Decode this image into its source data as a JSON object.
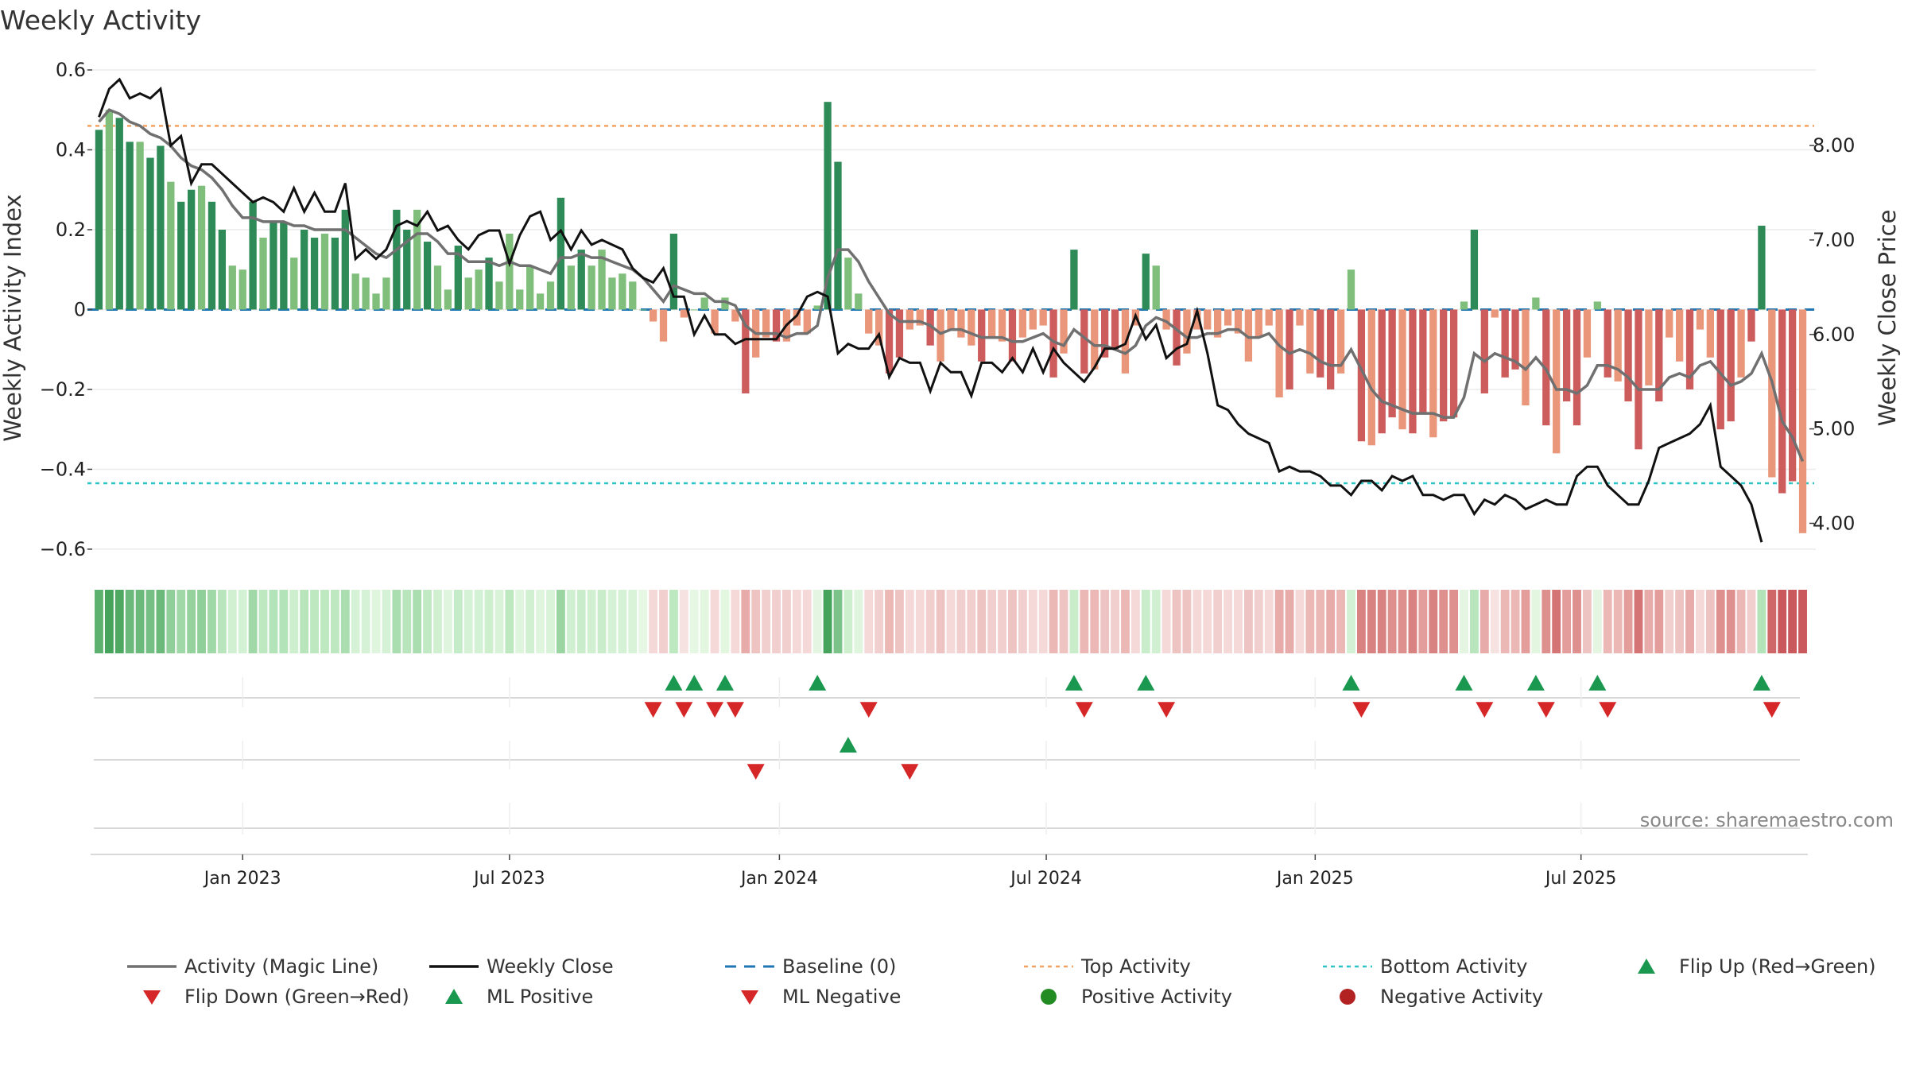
{
  "title": "Weekly Activity",
  "source": "source: sharemaestro.com",
  "colors": {
    "pos_dark": "#2e8b57",
    "pos_light": "#7fbf7b",
    "neg_dark": "#cd5c5c",
    "neg_light": "#e9967a",
    "close": "#111111",
    "magic": "#707070",
    "baseline": "#1f77b4",
    "top": "#f4a261",
    "bottom": "#2ec4c4",
    "tri_up": "#1a9850",
    "tri_down": "#d62728",
    "pos_dot": "#228b22",
    "neg_dot": "#b22222"
  },
  "legend": [
    {
      "label": "Activity (Magic Line)",
      "symbol": "line",
      "color": "#707070"
    },
    {
      "label": "Weekly Close",
      "symbol": "line",
      "color": "#111111"
    },
    {
      "label": "Baseline (0)",
      "symbol": "dash",
      "color": "#1f77b4"
    },
    {
      "label": "Top Activity",
      "symbol": "dot-line",
      "color": "#f4a261"
    },
    {
      "label": "Bottom Activity",
      "symbol": "dot-line",
      "color": "#2ec4c4"
    },
    {
      "label": "Flip Up (Red→Green)",
      "symbol": "tri-up",
      "color": "#1a9850"
    },
    {
      "label": "Flip Down (Green→Red)",
      "symbol": "tri-down",
      "color": "#d62728"
    },
    {
      "label": "ML Positive",
      "symbol": "tri-up",
      "color": "#1a9850"
    },
    {
      "label": "ML Negative",
      "symbol": "tri-down",
      "color": "#d62728"
    },
    {
      "label": "Positive Activity",
      "symbol": "circle",
      "color": "#228b22"
    },
    {
      "label": "Negative Activity",
      "symbol": "circle",
      "color": "#b22222"
    }
  ],
  "chart_data": {
    "type": "bar",
    "title": "Weekly Activity",
    "ylabel": "Weekly Activity Index",
    "y2label": "Weekly Close Price",
    "ylim": [
      -0.63,
      0.6
    ],
    "y2lim": [
      3.6,
      8.8
    ],
    "yticks": [
      {
        "v": 0.6,
        "label": "0.6"
      },
      {
        "v": 0.4,
        "label": "0.4"
      },
      {
        "v": 0.2,
        "label": "0.2"
      },
      {
        "v": 0,
        "label": "0"
      },
      {
        "v": -0.2,
        "label": "−0.2"
      },
      {
        "v": -0.4,
        "label": "−0.4"
      },
      {
        "v": -0.6,
        "label": "−0.6"
      }
    ],
    "y2ticks": [
      {
        "v": 8.0,
        "label": "8.00"
      },
      {
        "v": 7.0,
        "label": "7.00"
      },
      {
        "v": 6.0,
        "label": "6.00"
      },
      {
        "v": 5.0,
        "label": "5.00"
      },
      {
        "v": 4.0,
        "label": "4.00"
      }
    ],
    "x_start_week": -14,
    "xticks": [
      {
        "week": 0,
        "label": "Jan 2023"
      },
      {
        "week": 26,
        "label": "Jul 2023"
      },
      {
        "week": 52.3,
        "label": "Jan 2024"
      },
      {
        "week": 78.3,
        "label": "Jul 2024"
      },
      {
        "week": 104.5,
        "label": "Jan 2025"
      },
      {
        "week": 130.4,
        "label": "Jul 2025"
      }
    ],
    "top_activity": 0.46,
    "bottom_activity": -0.435,
    "baseline": 0,
    "activity": [
      0.45,
      0.5,
      0.48,
      0.42,
      0.42,
      0.38,
      0.41,
      0.32,
      0.27,
      0.3,
      0.31,
      0.27,
      0.2,
      0.11,
      0.1,
      0.27,
      0.18,
      0.22,
      0.22,
      0.13,
      0.2,
      0.18,
      0.19,
      0.18,
      0.25,
      0.09,
      0.08,
      0.04,
      0.08,
      0.25,
      0.2,
      0.25,
      0.17,
      0.11,
      0.05,
      0.16,
      0.08,
      0.1,
      0.13,
      0.07,
      0.19,
      0.05,
      0.11,
      0.04,
      0.07,
      0.28,
      0.11,
      0.15,
      0.11,
      0.15,
      0.08,
      0.09,
      0.07,
      0.0,
      -0.03,
      -0.08,
      0.19,
      -0.02,
      0.0,
      0.03,
      -0.06,
      0.03,
      -0.03,
      -0.21,
      -0.12,
      -0.07,
      -0.08,
      -0.08,
      -0.04,
      -0.06,
      0.01,
      0.52,
      0.37,
      0.13,
      0.04,
      -0.06,
      -0.09,
      -0.16,
      -0.12,
      -0.05,
      -0.04,
      -0.09,
      -0.13,
      -0.05,
      -0.07,
      -0.09,
      -0.13,
      -0.07,
      -0.08,
      -0.13,
      -0.07,
      -0.05,
      -0.04,
      -0.17,
      -0.11,
      0.15,
      -0.16,
      -0.15,
      -0.12,
      -0.1,
      -0.16,
      -0.04,
      0.14,
      0.11,
      -0.05,
      -0.14,
      -0.11,
      -0.05,
      -0.05,
      -0.07,
      -0.04,
      -0.06,
      -0.13,
      -0.07,
      -0.04,
      -0.22,
      -0.2,
      -0.04,
      -0.16,
      -0.17,
      -0.2,
      -0.16,
      0.1,
      -0.33,
      -0.34,
      -0.31,
      -0.27,
      -0.3,
      -0.31,
      -0.26,
      -0.32,
      -0.28,
      -0.27,
      0.02,
      0.2,
      -0.21,
      -0.02,
      -0.17,
      -0.15,
      -0.24,
      0.03,
      -0.29,
      -0.36,
      -0.23,
      -0.29,
      -0.12,
      0.02,
      -0.17,
      -0.18,
      -0.23,
      -0.35,
      -0.19,
      -0.23,
      -0.07,
      -0.13,
      -0.2,
      -0.05,
      -0.12,
      -0.3,
      -0.28,
      -0.17,
      -0.08,
      0.21,
      -0.42,
      -0.46,
      -0.43,
      -0.56
    ],
    "magic_line": [
      0.47,
      0.5,
      0.49,
      0.47,
      0.46,
      0.44,
      0.43,
      0.41,
      0.38,
      0.36,
      0.35,
      0.33,
      0.3,
      0.26,
      0.23,
      0.23,
      0.22,
      0.22,
      0.22,
      0.21,
      0.21,
      0.2,
      0.2,
      0.2,
      0.2,
      0.18,
      0.16,
      0.14,
      0.13,
      0.15,
      0.17,
      0.19,
      0.19,
      0.17,
      0.14,
      0.14,
      0.12,
      0.12,
      0.12,
      0.11,
      0.12,
      0.11,
      0.11,
      0.1,
      0.09,
      0.13,
      0.13,
      0.14,
      0.13,
      0.13,
      0.12,
      0.11,
      0.1,
      0.08,
      0.05,
      0.02,
      0.06,
      0.05,
      0.04,
      0.04,
      0.02,
      0.02,
      0.01,
      -0.04,
      -0.06,
      -0.06,
      -0.06,
      -0.07,
      -0.06,
      -0.06,
      -0.04,
      0.08,
      0.15,
      0.15,
      0.12,
      0.07,
      0.03,
      -0.01,
      -0.03,
      -0.03,
      -0.03,
      -0.04,
      -0.06,
      -0.05,
      -0.05,
      -0.06,
      -0.07,
      -0.07,
      -0.07,
      -0.08,
      -0.08,
      -0.07,
      -0.06,
      -0.08,
      -0.09,
      -0.05,
      -0.07,
      -0.09,
      -0.09,
      -0.1,
      -0.11,
      -0.09,
      -0.04,
      -0.02,
      -0.03,
      -0.05,
      -0.07,
      -0.07,
      -0.06,
      -0.06,
      -0.05,
      -0.05,
      -0.07,
      -0.07,
      -0.06,
      -0.09,
      -0.11,
      -0.1,
      -0.11,
      -0.13,
      -0.14,
      -0.14,
      -0.1,
      -0.15,
      -0.2,
      -0.23,
      -0.24,
      -0.25,
      -0.26,
      -0.26,
      -0.26,
      -0.27,
      -0.27,
      -0.22,
      -0.11,
      -0.13,
      -0.11,
      -0.12,
      -0.13,
      -0.15,
      -0.12,
      -0.15,
      -0.2,
      -0.2,
      -0.21,
      -0.19,
      -0.14,
      -0.14,
      -0.15,
      -0.17,
      -0.2,
      -0.2,
      -0.2,
      -0.17,
      -0.16,
      -0.17,
      -0.14,
      -0.13,
      -0.16,
      -0.19,
      -0.18,
      -0.16,
      -0.11,
      -0.18,
      -0.28,
      -0.32,
      -0.38
    ],
    "weekly_close": [
      8.3,
      8.6,
      8.7,
      8.5,
      8.55,
      8.5,
      8.6,
      8.0,
      8.1,
      7.6,
      7.8,
      7.8,
      7.7,
      7.6,
      7.5,
      7.4,
      7.45,
      7.4,
      7.3,
      7.55,
      7.3,
      7.5,
      7.3,
      7.3,
      7.6,
      6.8,
      6.9,
      6.8,
      6.9,
      7.15,
      7.2,
      7.15,
      7.3,
      7.1,
      7.15,
      7.0,
      6.9,
      7.05,
      7.1,
      7.1,
      6.75,
      7.05,
      7.25,
      7.3,
      7.0,
      7.1,
      6.9,
      7.1,
      6.95,
      7.0,
      6.95,
      6.9,
      6.7,
      6.6,
      6.55,
      6.7,
      6.4,
      6.4,
      6.0,
      6.2,
      6.0,
      6.0,
      5.9,
      5.95,
      5.95,
      5.95,
      5.95,
      6.1,
      6.2,
      6.4,
      6.45,
      6.4,
      5.8,
      5.9,
      5.85,
      5.85,
      6.0,
      5.55,
      5.75,
      5.7,
      5.7,
      5.4,
      5.7,
      5.6,
      5.6,
      5.35,
      5.7,
      5.7,
      5.6,
      5.75,
      5.6,
      5.85,
      5.6,
      5.85,
      5.7,
      5.6,
      5.5,
      5.65,
      5.85,
      5.85,
      5.9,
      6.2,
      5.95,
      6.1,
      5.75,
      5.85,
      5.9,
      6.25,
      5.8,
      5.25,
      5.2,
      5.05,
      4.95,
      4.9,
      4.85,
      4.55,
      4.6,
      4.55,
      4.55,
      4.5,
      4.4,
      4.4,
      4.3,
      4.45,
      4.45,
      4.35,
      4.5,
      4.45,
      4.5,
      4.3,
      4.3,
      4.25,
      4.3,
      4.3,
      4.1,
      4.25,
      4.2,
      4.3,
      4.25,
      4.15,
      4.2,
      4.25,
      4.2,
      4.2,
      4.5,
      4.6,
      4.6,
      4.4,
      4.3,
      4.2,
      4.2,
      4.45,
      4.8,
      4.85,
      4.9,
      4.95,
      5.05,
      5.25,
      4.6,
      4.5,
      4.4,
      4.2,
      3.8
    ]
  },
  "strip_colors": [
    "#45a35b",
    "#4ea862",
    "#55ac68",
    "#5cb16e",
    "#61b473",
    "#66b677",
    "#6bb97b",
    "#70bc7f",
    "#76bf84",
    "#7bc388",
    "#80c68d",
    "#85c991",
    "#8acc95",
    "#90cf9a",
    "#95d29e",
    "#9ad5a2",
    "#a0d8a7",
    "#a5dbac",
    "#aadeb0",
    "#afe1b5",
    "#b3e3b8",
    "#b8e5bc",
    "#bde8c0",
    "#c1eac4",
    "#c5ecc8",
    "#c9edcb",
    "#cdefce",
    "#d0f0d1",
    "#d3f1d4",
    "#d6f2d6",
    "#d9f3d9",
    "#dcf4db",
    "#dff5de",
    "#e2f6e0",
    "#e4f6e2",
    "#e6f7e4"
  ],
  "ml_row": {
    "up": [
      73
    ],
    "down": [
      64,
      79
    ]
  }
}
